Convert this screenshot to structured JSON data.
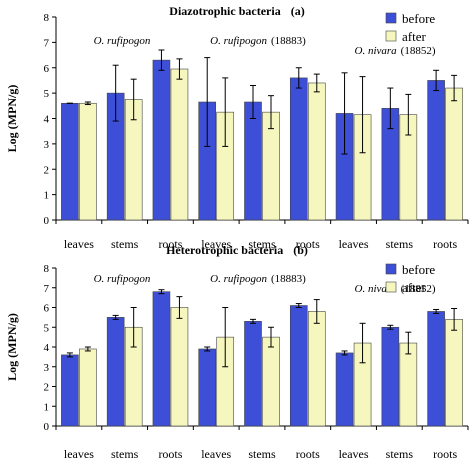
{
  "colors": {
    "before": "#3d4fd6",
    "after": "#f6f6bf",
    "axis": "#000000"
  },
  "legend_labels": {
    "before": "before",
    "after": "after"
  },
  "chart_data": [
    {
      "type": "bar",
      "title": "Diazotrophic bacteria",
      "panel_label": "(a)",
      "ylabel": "Log (MPN/g)",
      "ylim": [
        0,
        8
      ],
      "yticks": [
        "0",
        "1",
        "2",
        "3",
        "4",
        "5",
        "6",
        "7",
        "8"
      ],
      "categories": [
        "leaves",
        "stems",
        "roots",
        "leaves",
        "stems",
        "roots",
        "leaves",
        "stems",
        "roots"
      ],
      "groups": [
        {
          "name": "O. rufipogon",
          "extra": ""
        },
        {
          "name": "O. rufipogon",
          "extra": "(18883)"
        },
        {
          "name": "O. nivara",
          "extra": "(18852)"
        }
      ],
      "legend_position": "top-right",
      "grid": false,
      "series": [
        {
          "name": "before",
          "values": [
            4.6,
            5.0,
            6.3,
            4.65,
            4.65,
            5.6,
            4.2,
            4.4,
            5.5
          ],
          "errors": [
            0.0,
            1.1,
            0.4,
            1.75,
            0.65,
            0.4,
            1.6,
            0.8,
            0.4
          ]
        },
        {
          "name": "after",
          "values": [
            4.6,
            4.75,
            5.95,
            4.25,
            4.25,
            5.4,
            4.15,
            4.15,
            5.2
          ],
          "errors": [
            0.05,
            0.8,
            0.4,
            1.35,
            0.65,
            0.35,
            1.5,
            0.8,
            0.5
          ]
        }
      ]
    },
    {
      "type": "bar",
      "title": "Heterotrophic bacteria",
      "panel_label": "(b)",
      "ylabel": "Log (MPN/g)",
      "ylim": [
        0,
        8
      ],
      "yticks": [
        "0",
        "1",
        "2",
        "3",
        "4",
        "5",
        "6",
        "7",
        "8"
      ],
      "categories": [
        "leaves",
        "stems",
        "roots",
        "leaves",
        "stems",
        "roots",
        "leaves",
        "stems",
        "roots"
      ],
      "groups": [
        {
          "name": "O. rufipogon",
          "extra": ""
        },
        {
          "name": "O. rufipogon",
          "extra": "(18883)"
        },
        {
          "name": "O. nivara",
          "extra": "(18852)"
        }
      ],
      "legend_position": "top-right",
      "grid": false,
      "series": [
        {
          "name": "before",
          "values": [
            3.6,
            5.5,
            6.8,
            3.9,
            5.3,
            6.1,
            3.7,
            5.0,
            5.8
          ],
          "errors": [
            0.1,
            0.1,
            0.1,
            0.1,
            0.1,
            0.1,
            0.1,
            0.1,
            0.1
          ]
        },
        {
          "name": "after",
          "values": [
            3.9,
            5.0,
            6.0,
            4.5,
            4.5,
            5.8,
            4.2,
            4.2,
            5.4
          ],
          "errors": [
            0.1,
            1.0,
            0.55,
            1.5,
            0.5,
            0.6,
            1.0,
            0.55,
            0.55
          ]
        }
      ]
    }
  ]
}
